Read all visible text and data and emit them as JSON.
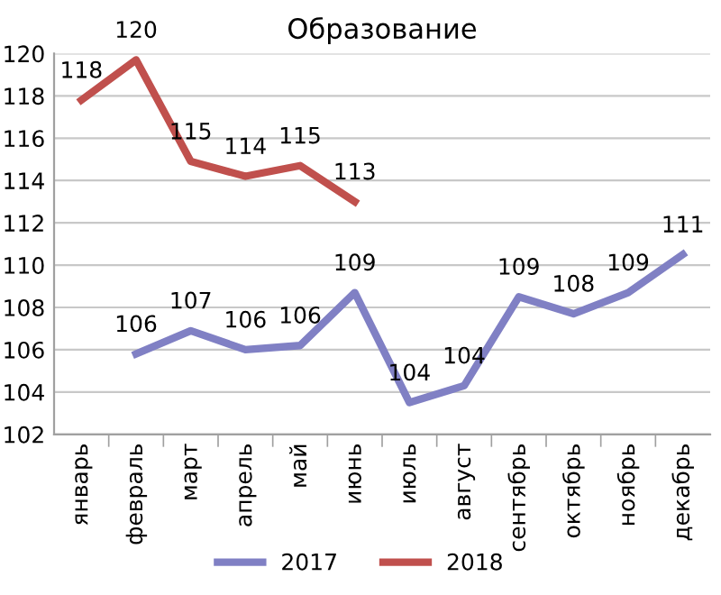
{
  "chart_data": {
    "type": "line",
    "title": "Образование",
    "categories": [
      "январь",
      "февраль",
      "март",
      "апрель",
      "май",
      "июнь",
      "июль",
      "август",
      "сентябрь",
      "октябрь",
      "ноябрь",
      "декабрь"
    ],
    "series": [
      {
        "name": "2017",
        "color": "#8080c4",
        "values": [
          null,
          105.8,
          106.9,
          106.0,
          106.2,
          108.7,
          103.5,
          104.3,
          108.5,
          107.7,
          108.7,
          110.5
        ],
        "value_labels": [
          null,
          "106",
          "107",
          "106",
          "106",
          "109",
          "104",
          "104",
          "109",
          "108",
          "109",
          "111"
        ]
      },
      {
        "name": "2018",
        "color": "#c0504d",
        "values": [
          117.8,
          119.7,
          114.9,
          114.2,
          114.7,
          113.0,
          null,
          null,
          null,
          null,
          null,
          null
        ],
        "value_labels": [
          "118",
          "120",
          "115",
          "114",
          "115",
          "113",
          null,
          null,
          null,
          null,
          null,
          null
        ]
      }
    ],
    "ylim": [
      102,
      120
    ],
    "yticks": [
      102,
      104,
      106,
      108,
      110,
      112,
      114,
      116,
      118,
      120
    ],
    "grid": "y",
    "legend": "bottom",
    "marker": "none",
    "line_style": "solid"
  }
}
